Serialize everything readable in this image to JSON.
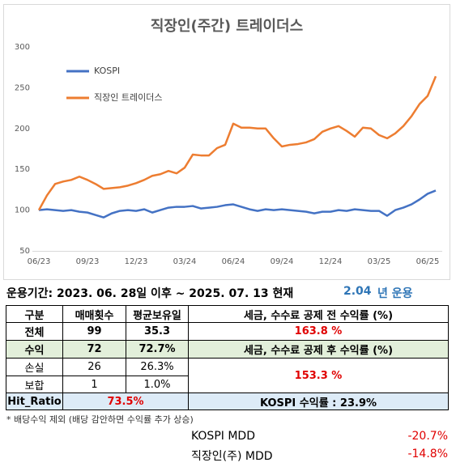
{
  "chart_data": {
    "type": "line",
    "title": "직장인(주간) 트레이더스",
    "categories": [
      "06/23",
      null,
      null,
      null,
      null,
      null,
      "09/23",
      null,
      null,
      null,
      null,
      null,
      "12/23",
      null,
      null,
      null,
      null,
      null,
      "03/24",
      null,
      null,
      null,
      null,
      null,
      "06/24",
      null,
      null,
      null,
      null,
      null,
      "09/24",
      null,
      null,
      null,
      null,
      null,
      "12/24",
      null,
      null,
      null,
      null,
      null,
      "03/25",
      null,
      null,
      null,
      null,
      null,
      "06/25",
      null
    ],
    "series": [
      {
        "name": "KOSPI",
        "color": "#4472c4",
        "values": [
          100,
          101,
          100,
          99,
          100,
          98,
          97,
          94,
          91,
          96,
          99,
          100,
          99,
          101,
          97,
          100,
          103,
          104,
          104,
          105,
          102,
          103,
          104,
          106,
          107,
          104,
          101,
          99,
          101,
          100,
          101,
          100,
          99,
          98,
          96,
          98,
          98,
          100,
          99,
          101,
          100,
          99,
          99,
          93,
          100,
          103,
          107,
          113,
          120,
          124
        ]
      },
      {
        "name": "직장인 트레이더스",
        "color": "#ed7d31",
        "values": [
          100,
          118,
          132,
          135,
          137,
          141,
          137,
          132,
          126,
          127,
          128,
          130,
          133,
          137,
          142,
          144,
          148,
          145,
          152,
          168,
          167,
          167,
          176,
          180,
          206,
          201,
          201,
          200,
          200,
          188,
          178,
          180,
          181,
          183,
          187,
          196,
          200,
          203,
          197,
          190,
          201,
          200,
          192,
          188,
          194,
          203,
          215,
          230,
          240,
          264
        ]
      }
    ],
    "ylim": [
      50,
      300
    ],
    "yticks": [
      50,
      100,
      150,
      200,
      250,
      300
    ],
    "grid": false,
    "legend": "upper left"
  },
  "summary": {
    "period": "운용기간: 2023. 06. 28일 이후 ~ 2025. 07. 13 현재",
    "years": "2.04",
    "years_unit": "년 운용"
  },
  "table": {
    "header": [
      "구분",
      "매매횟수",
      "평균보유일",
      "세금, 수수료 공제 전 수익률 (%)"
    ],
    "rows": [
      [
        "전체",
        "99",
        "35.3",
        "163.8 %"
      ],
      [
        "수익",
        "72",
        "72.7%",
        "세금, 수수료 공제 후 수익률 (%)"
      ],
      [
        "손실",
        "26",
        "26.3%",
        "153.3 %"
      ],
      [
        "보합",
        "1",
        "1.0%"
      ]
    ],
    "hit_label": "Hit_Ratio",
    "hit_value": "73.5%",
    "kospi_return": "KOSPI 수익률 : 23.9%"
  },
  "note": "* 배당수익 제외 (배당 감안하면 수익률 추가 상승)",
  "mdd": [
    [
      "KOSPI MDD",
      "-20.7%"
    ],
    [
      "직장인(주) MDD",
      "-14.8%"
    ]
  ]
}
